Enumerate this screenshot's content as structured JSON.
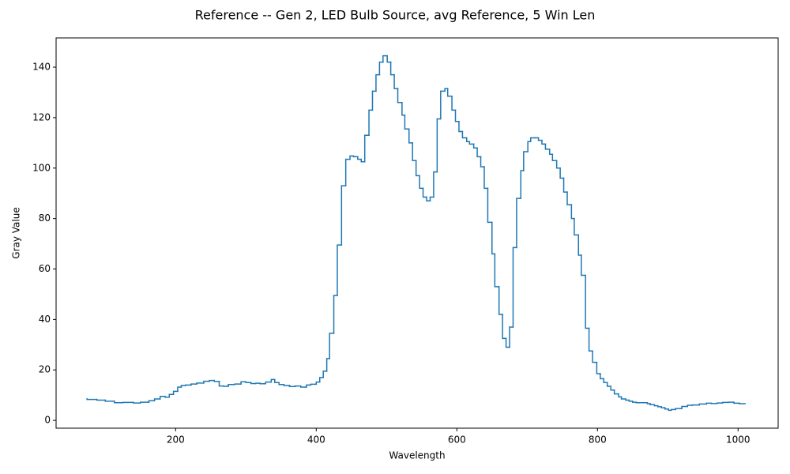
{
  "chart_data": {
    "type": "step",
    "title": "Reference -- Gen 2, LED Bulb Source, avg Reference, 5 Win Len",
    "xlabel": "Wavelength",
    "ylabel": "Gray Value",
    "xlim": [
      30,
      1057
    ],
    "ylim": [
      -3.1,
      151.6
    ],
    "xticks": [
      200,
      400,
      600,
      800,
      1000
    ],
    "yticks": [
      0,
      20,
      40,
      60,
      80,
      100,
      120,
      140
    ],
    "grid": false,
    "series": [
      {
        "name": "avg Reference",
        "color": "#1f77b4",
        "x": [
          74,
          88,
          100,
          113,
          125,
          140,
          150,
          162,
          170,
          178,
          185,
          191,
          197,
          203,
          208,
          214,
          222,
          230,
          240,
          248,
          255,
          262,
          268,
          275,
          284,
          293,
          300,
          307,
          314,
          320,
          328,
          336,
          341,
          347,
          354,
          362,
          370,
          378,
          386,
          392,
          400,
          405,
          410,
          415,
          419,
          425,
          430,
          436,
          442,
          448,
          453,
          459,
          464,
          469,
          475,
          480,
          485,
          490,
          495,
          501,
          506,
          511,
          516,
          522,
          526,
          532,
          537,
          542,
          547,
          552,
          557,
          562,
          567,
          572,
          577,
          583,
          587,
          593,
          598,
          603,
          608,
          614,
          618,
          624,
          629,
          634,
          639,
          644,
          650,
          654,
          660,
          665,
          670,
          675,
          680,
          685,
          691,
          695,
          701,
          705,
          711,
          716,
          721,
          726,
          732,
          736,
          742,
          747,
          752,
          757,
          763,
          767,
          773,
          777,
          783,
          788,
          793,
          799,
          804,
          809,
          814,
          819,
          824,
          830,
          834,
          840,
          845,
          850,
          855,
          861,
          871,
          875,
          881,
          886,
          891,
          896,
          901,
          905,
          911,
          920,
          928,
          935,
          945,
          955,
          962,
          970,
          978,
          986,
          994,
          1002,
          1010
        ],
        "values": [
          8.5,
          8.3,
          8.0,
          7.6,
          7.0,
          7.1,
          6.9,
          7.2,
          7.8,
          8.5,
          9.5,
          9.2,
          10.3,
          11.5,
          13.2,
          13.8,
          14.0,
          14.4,
          14.8,
          15.5,
          15.8,
          15.4,
          13.6,
          13.5,
          14.2,
          14.4,
          15.3,
          15.0,
          14.6,
          14.7,
          14.5,
          15.2,
          16.2,
          15.0,
          14.2,
          13.8,
          13.4,
          13.6,
          13.2,
          14.0,
          14.3,
          15.2,
          17.0,
          19.5,
          24.5,
          34.5,
          49.5,
          69.5,
          93,
          103.5,
          104.8,
          104.5,
          103.5,
          102.5,
          113,
          123,
          130.5,
          137,
          142,
          144.5,
          142,
          137,
          131.5,
          126,
          121,
          115.5,
          110,
          103,
          97,
          92,
          88.5,
          87,
          88.5,
          98.5,
          119.5,
          130.5,
          131.5,
          128.5,
          123,
          118.5,
          114.5,
          112,
          110.5,
          109.5,
          108,
          104.5,
          100.5,
          92,
          78.5,
          66,
          53,
          42,
          32.5,
          29,
          37,
          68.5,
          88,
          99,
          106.5,
          110.5,
          112,
          112,
          111,
          109.5,
          107.5,
          105.5,
          103,
          100,
          96,
          90.5,
          85.5,
          80,
          73.5,
          65.5,
          57.5,
          36.5,
          27.5,
          23,
          18.5,
          16.5,
          15,
          13.5,
          12,
          10.5,
          9.3,
          8.5,
          8.0,
          7.6,
          7.2,
          7.0,
          7.0,
          6.6,
          6.2,
          5.8,
          5.4,
          5.0,
          4.5,
          4.0,
          4.3,
          4.7,
          5.5,
          6.0,
          6.1,
          6.5,
          6.8,
          6.7,
          6.9,
          7.1,
          7.2,
          6.8,
          6.6
        ]
      }
    ]
  }
}
